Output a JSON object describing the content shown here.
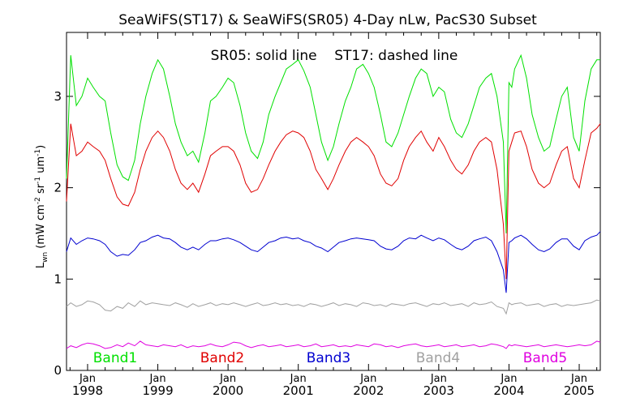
{
  "chart_data": {
    "type": "line",
    "title": "SeaWiFS(ST17) & SeaWiFS(SR05) 4-Day nLw, PacS30 Subset",
    "annotation": "SR05: solid line    ST17: dashed line",
    "ylabel_main": "L",
    "ylabel_sub": "wn",
    "ylabel_rest": "(mW cm",
    "ylabel_unit_tail": "sr",
    "ylabel_unit_end": "um",
    "ylabel_exp": "-2",
    "ylabel_exp2": "-1",
    "ylabel_exp3": "-1",
    "xlim": [
      1997.7,
      2005.3
    ],
    "ylim": [
      0.0,
      3.7
    ],
    "yticks": [
      0,
      1,
      2,
      3
    ],
    "xticks": [
      {
        "year": 1998,
        "top": "Jan",
        "bottom": "1998"
      },
      {
        "year": 1999,
        "top": "Jan",
        "bottom": "1999"
      },
      {
        "year": 2000,
        "top": "Jan",
        "bottom": "2000"
      },
      {
        "year": 2001,
        "top": "Jan",
        "bottom": "2001"
      },
      {
        "year": 2002,
        "top": "Jan",
        "bottom": "2002"
      },
      {
        "year": 2003,
        "top": "Jan",
        "bottom": "2003"
      },
      {
        "year": 2004,
        "top": "Jan",
        "bottom": "2004"
      },
      {
        "year": 2005,
        "top": "Jan",
        "bottom": "2005"
      }
    ],
    "grid": false,
    "series": [
      {
        "name": "Band1",
        "color": "#00e000",
        "x": [
          1997.7,
          1997.76,
          1997.84,
          1997.92,
          1998.0,
          1998.08,
          1998.17,
          1998.25,
          1998.33,
          1998.42,
          1998.5,
          1998.58,
          1998.67,
          1998.75,
          1998.83,
          1998.92,
          1999.0,
          1999.08,
          1999.17,
          1999.25,
          1999.33,
          1999.42,
          1999.5,
          1999.58,
          1999.67,
          1999.75,
          1999.83,
          1999.92,
          2000.0,
          2000.08,
          2000.17,
          2000.25,
          2000.33,
          2000.42,
          2000.5,
          2000.58,
          2000.67,
          2000.75,
          2000.83,
          2000.92,
          2001.0,
          2001.08,
          2001.17,
          2001.25,
          2001.33,
          2001.42,
          2001.5,
          2001.58,
          2001.67,
          2001.75,
          2001.83,
          2001.92,
          2002.0,
          2002.08,
          2002.17,
          2002.25,
          2002.33,
          2002.42,
          2002.5,
          2002.58,
          2002.67,
          2002.75,
          2002.83,
          2002.92,
          2003.0,
          2003.08,
          2003.17,
          2003.25,
          2003.33,
          2003.42,
          2003.5,
          2003.58,
          2003.67,
          2003.75,
          2003.83,
          2003.92,
          2003.96,
          2004.0,
          2004.04,
          2004.08,
          2004.17,
          2004.25,
          2004.33,
          2004.42,
          2004.5,
          2004.58,
          2004.67,
          2004.75,
          2004.83,
          2004.92,
          2005.0,
          2005.08,
          2005.17,
          2005.25,
          2005.3
        ],
        "values": [
          2.1,
          3.45,
          2.9,
          3.0,
          3.2,
          3.1,
          3.0,
          2.95,
          2.6,
          2.25,
          2.12,
          2.08,
          2.3,
          2.7,
          3.0,
          3.25,
          3.4,
          3.3,
          3.0,
          2.7,
          2.5,
          2.35,
          2.4,
          2.28,
          2.6,
          2.95,
          3.0,
          3.1,
          3.2,
          3.15,
          2.9,
          2.6,
          2.4,
          2.32,
          2.5,
          2.8,
          3.0,
          3.15,
          3.3,
          3.35,
          3.4,
          3.28,
          3.1,
          2.8,
          2.5,
          2.3,
          2.45,
          2.7,
          2.95,
          3.1,
          3.3,
          3.35,
          3.25,
          3.1,
          2.8,
          2.5,
          2.45,
          2.6,
          2.8,
          3.0,
          3.2,
          3.3,
          3.25,
          3.0,
          3.1,
          3.05,
          2.75,
          2.6,
          2.55,
          2.7,
          2.9,
          3.1,
          3.2,
          3.25,
          3.0,
          2.5,
          1.5,
          3.15,
          3.1,
          3.3,
          3.45,
          3.2,
          2.8,
          2.55,
          2.4,
          2.45,
          2.75,
          3.0,
          3.1,
          2.55,
          2.4,
          2.95,
          3.3,
          3.4,
          3.4
        ]
      },
      {
        "name": "Band2",
        "color": "#e00000",
        "x": [
          1997.7,
          1997.76,
          1997.84,
          1997.92,
          1998.0,
          1998.08,
          1998.17,
          1998.25,
          1998.33,
          1998.42,
          1998.5,
          1998.58,
          1998.67,
          1998.75,
          1998.83,
          1998.92,
          1999.0,
          1999.08,
          1999.17,
          1999.25,
          1999.33,
          1999.42,
          1999.5,
          1999.58,
          1999.67,
          1999.75,
          1999.83,
          1999.92,
          2000.0,
          2000.08,
          2000.17,
          2000.25,
          2000.33,
          2000.42,
          2000.5,
          2000.58,
          2000.67,
          2000.75,
          2000.83,
          2000.92,
          2001.0,
          2001.08,
          2001.17,
          2001.25,
          2001.33,
          2001.42,
          2001.5,
          2001.58,
          2001.67,
          2001.75,
          2001.83,
          2001.92,
          2002.0,
          2002.08,
          2002.17,
          2002.25,
          2002.33,
          2002.42,
          2002.5,
          2002.58,
          2002.67,
          2002.75,
          2002.83,
          2002.92,
          2003.0,
          2003.08,
          2003.17,
          2003.25,
          2003.33,
          2003.42,
          2003.5,
          2003.58,
          2003.67,
          2003.75,
          2003.83,
          2003.92,
          2003.96,
          2004.0,
          2004.04,
          2004.08,
          2004.17,
          2004.25,
          2004.33,
          2004.42,
          2004.5,
          2004.58,
          2004.67,
          2004.75,
          2004.83,
          2004.92,
          2005.0,
          2005.08,
          2005.17,
          2005.25,
          2005.3
        ],
        "values": [
          1.85,
          2.7,
          2.35,
          2.4,
          2.5,
          2.45,
          2.4,
          2.3,
          2.1,
          1.9,
          1.82,
          1.8,
          1.95,
          2.2,
          2.4,
          2.55,
          2.62,
          2.55,
          2.4,
          2.2,
          2.05,
          1.98,
          2.05,
          1.95,
          2.15,
          2.35,
          2.4,
          2.45,
          2.45,
          2.4,
          2.25,
          2.05,
          1.95,
          1.98,
          2.1,
          2.25,
          2.4,
          2.5,
          2.58,
          2.62,
          2.6,
          2.55,
          2.4,
          2.2,
          2.1,
          1.98,
          2.1,
          2.25,
          2.4,
          2.5,
          2.55,
          2.5,
          2.45,
          2.35,
          2.15,
          2.05,
          2.02,
          2.1,
          2.3,
          2.45,
          2.55,
          2.62,
          2.5,
          2.4,
          2.55,
          2.45,
          2.3,
          2.2,
          2.15,
          2.25,
          2.4,
          2.5,
          2.55,
          2.5,
          2.2,
          1.6,
          1.0,
          2.4,
          2.5,
          2.6,
          2.62,
          2.45,
          2.2,
          2.05,
          2.0,
          2.05,
          2.25,
          2.4,
          2.45,
          2.1,
          2.0,
          2.3,
          2.6,
          2.65,
          2.7
        ]
      },
      {
        "name": "Band3",
        "color": "#0000d0",
        "x": [
          1997.7,
          1997.76,
          1997.84,
          1997.92,
          1998.0,
          1998.08,
          1998.17,
          1998.25,
          1998.33,
          1998.42,
          1998.5,
          1998.58,
          1998.67,
          1998.75,
          1998.83,
          1998.92,
          1999.0,
          1999.08,
          1999.17,
          1999.25,
          1999.33,
          1999.42,
          1999.5,
          1999.58,
          1999.67,
          1999.75,
          1999.83,
          1999.92,
          2000.0,
          2000.08,
          2000.17,
          2000.25,
          2000.33,
          2000.42,
          2000.5,
          2000.58,
          2000.67,
          2000.75,
          2000.83,
          2000.92,
          2001.0,
          2001.08,
          2001.17,
          2001.25,
          2001.33,
          2001.42,
          2001.5,
          2001.58,
          2001.67,
          2001.75,
          2001.83,
          2001.92,
          2002.0,
          2002.08,
          2002.17,
          2002.25,
          2002.33,
          2002.42,
          2002.5,
          2002.58,
          2002.67,
          2002.75,
          2002.83,
          2002.92,
          2003.0,
          2003.08,
          2003.17,
          2003.25,
          2003.33,
          2003.42,
          2003.5,
          2003.58,
          2003.67,
          2003.75,
          2003.83,
          2003.92,
          2003.96,
          2004.0,
          2004.04,
          2004.08,
          2004.17,
          2004.25,
          2004.33,
          2004.42,
          2004.5,
          2004.58,
          2004.67,
          2004.75,
          2004.83,
          2004.92,
          2005.0,
          2005.08,
          2005.17,
          2005.25,
          2005.3
        ],
        "values": [
          1.3,
          1.45,
          1.38,
          1.42,
          1.45,
          1.44,
          1.42,
          1.38,
          1.3,
          1.25,
          1.27,
          1.26,
          1.32,
          1.4,
          1.42,
          1.46,
          1.48,
          1.45,
          1.44,
          1.4,
          1.35,
          1.32,
          1.35,
          1.32,
          1.38,
          1.42,
          1.42,
          1.44,
          1.45,
          1.43,
          1.4,
          1.36,
          1.32,
          1.3,
          1.35,
          1.4,
          1.42,
          1.45,
          1.46,
          1.44,
          1.45,
          1.42,
          1.4,
          1.36,
          1.34,
          1.3,
          1.35,
          1.4,
          1.42,
          1.44,
          1.45,
          1.44,
          1.43,
          1.42,
          1.36,
          1.33,
          1.32,
          1.36,
          1.42,
          1.45,
          1.44,
          1.48,
          1.45,
          1.42,
          1.45,
          1.43,
          1.38,
          1.34,
          1.32,
          1.36,
          1.42,
          1.44,
          1.46,
          1.42,
          1.3,
          1.1,
          0.85,
          1.4,
          1.42,
          1.45,
          1.48,
          1.44,
          1.38,
          1.32,
          1.3,
          1.33,
          1.4,
          1.44,
          1.44,
          1.36,
          1.32,
          1.42,
          1.46,
          1.48,
          1.52
        ]
      },
      {
        "name": "Band4",
        "color": "#a0a0a0",
        "x": [
          1997.7,
          1997.76,
          1997.84,
          1997.92,
          1998.0,
          1998.08,
          1998.17,
          1998.25,
          1998.33,
          1998.42,
          1998.5,
          1998.58,
          1998.67,
          1998.75,
          1998.83,
          1998.92,
          1999.0,
          1999.08,
          1999.17,
          1999.25,
          1999.33,
          1999.42,
          1999.5,
          1999.58,
          1999.67,
          1999.75,
          1999.83,
          1999.92,
          2000.0,
          2000.08,
          2000.17,
          2000.25,
          2000.33,
          2000.42,
          2000.5,
          2000.58,
          2000.67,
          2000.75,
          2000.83,
          2000.92,
          2001.0,
          2001.08,
          2001.17,
          2001.25,
          2001.33,
          2001.42,
          2001.5,
          2001.58,
          2001.67,
          2001.75,
          2001.83,
          2001.92,
          2002.0,
          2002.08,
          2002.17,
          2002.25,
          2002.33,
          2002.42,
          2002.5,
          2002.58,
          2002.67,
          2002.75,
          2002.83,
          2002.92,
          2003.0,
          2003.08,
          2003.17,
          2003.25,
          2003.33,
          2003.42,
          2003.5,
          2003.58,
          2003.67,
          2003.75,
          2003.83,
          2003.92,
          2003.96,
          2004.0,
          2004.04,
          2004.08,
          2004.17,
          2004.25,
          2004.33,
          2004.42,
          2004.5,
          2004.58,
          2004.67,
          2004.75,
          2004.83,
          2004.92,
          2005.0,
          2005.08,
          2005.17,
          2005.25,
          2005.3
        ],
        "values": [
          0.7,
          0.74,
          0.7,
          0.72,
          0.76,
          0.75,
          0.72,
          0.66,
          0.65,
          0.7,
          0.68,
          0.74,
          0.7,
          0.76,
          0.72,
          0.74,
          0.73,
          0.72,
          0.71,
          0.74,
          0.72,
          0.69,
          0.73,
          0.7,
          0.72,
          0.74,
          0.71,
          0.73,
          0.72,
          0.74,
          0.72,
          0.7,
          0.72,
          0.74,
          0.71,
          0.72,
          0.74,
          0.72,
          0.73,
          0.71,
          0.72,
          0.7,
          0.73,
          0.72,
          0.7,
          0.72,
          0.74,
          0.71,
          0.73,
          0.72,
          0.7,
          0.74,
          0.73,
          0.71,
          0.72,
          0.7,
          0.73,
          0.72,
          0.71,
          0.73,
          0.74,
          0.72,
          0.7,
          0.73,
          0.72,
          0.74,
          0.71,
          0.72,
          0.73,
          0.7,
          0.74,
          0.72,
          0.73,
          0.75,
          0.7,
          0.68,
          0.62,
          0.74,
          0.72,
          0.73,
          0.74,
          0.71,
          0.72,
          0.73,
          0.7,
          0.72,
          0.73,
          0.7,
          0.72,
          0.71,
          0.72,
          0.73,
          0.74,
          0.77,
          0.76
        ]
      },
      {
        "name": "Band5",
        "color": "#e000e0",
        "x": [
          1997.7,
          1997.76,
          1997.84,
          1997.92,
          1998.0,
          1998.08,
          1998.17,
          1998.25,
          1998.33,
          1998.42,
          1998.5,
          1998.58,
          1998.67,
          1998.75,
          1998.83,
          1998.92,
          1999.0,
          1999.08,
          1999.17,
          1999.25,
          1999.33,
          1999.42,
          1999.5,
          1999.58,
          1999.67,
          1999.75,
          1999.83,
          1999.92,
          2000.0,
          2000.08,
          2000.17,
          2000.25,
          2000.33,
          2000.42,
          2000.5,
          2000.58,
          2000.67,
          2000.75,
          2000.83,
          2000.92,
          2001.0,
          2001.08,
          2001.17,
          2001.25,
          2001.33,
          2001.42,
          2001.5,
          2001.58,
          2001.67,
          2001.75,
          2001.83,
          2001.92,
          2002.0,
          2002.08,
          2002.17,
          2002.25,
          2002.33,
          2002.42,
          2002.5,
          2002.58,
          2002.67,
          2002.75,
          2002.83,
          2002.92,
          2003.0,
          2003.08,
          2003.17,
          2003.25,
          2003.33,
          2003.42,
          2003.5,
          2003.58,
          2003.67,
          2003.75,
          2003.83,
          2003.92,
          2003.96,
          2004.0,
          2004.04,
          2004.08,
          2004.17,
          2004.25,
          2004.33,
          2004.42,
          2004.5,
          2004.58,
          2004.67,
          2004.75,
          2004.83,
          2004.92,
          2005.0,
          2005.08,
          2005.17,
          2005.25,
          2005.3
        ],
        "values": [
          0.24,
          0.27,
          0.25,
          0.28,
          0.3,
          0.29,
          0.27,
          0.24,
          0.25,
          0.28,
          0.26,
          0.3,
          0.27,
          0.32,
          0.28,
          0.27,
          0.26,
          0.28,
          0.27,
          0.26,
          0.28,
          0.25,
          0.27,
          0.26,
          0.27,
          0.29,
          0.27,
          0.26,
          0.28,
          0.31,
          0.3,
          0.27,
          0.25,
          0.27,
          0.28,
          0.26,
          0.27,
          0.28,
          0.26,
          0.27,
          0.28,
          0.26,
          0.27,
          0.29,
          0.26,
          0.27,
          0.28,
          0.26,
          0.27,
          0.26,
          0.28,
          0.27,
          0.26,
          0.29,
          0.28,
          0.26,
          0.27,
          0.25,
          0.27,
          0.28,
          0.29,
          0.27,
          0.26,
          0.27,
          0.28,
          0.26,
          0.27,
          0.28,
          0.26,
          0.27,
          0.28,
          0.26,
          0.27,
          0.29,
          0.28,
          0.26,
          0.24,
          0.28,
          0.27,
          0.28,
          0.27,
          0.26,
          0.27,
          0.28,
          0.26,
          0.27,
          0.28,
          0.27,
          0.26,
          0.27,
          0.28,
          0.27,
          0.28,
          0.32,
          0.31
        ]
      }
    ]
  }
}
